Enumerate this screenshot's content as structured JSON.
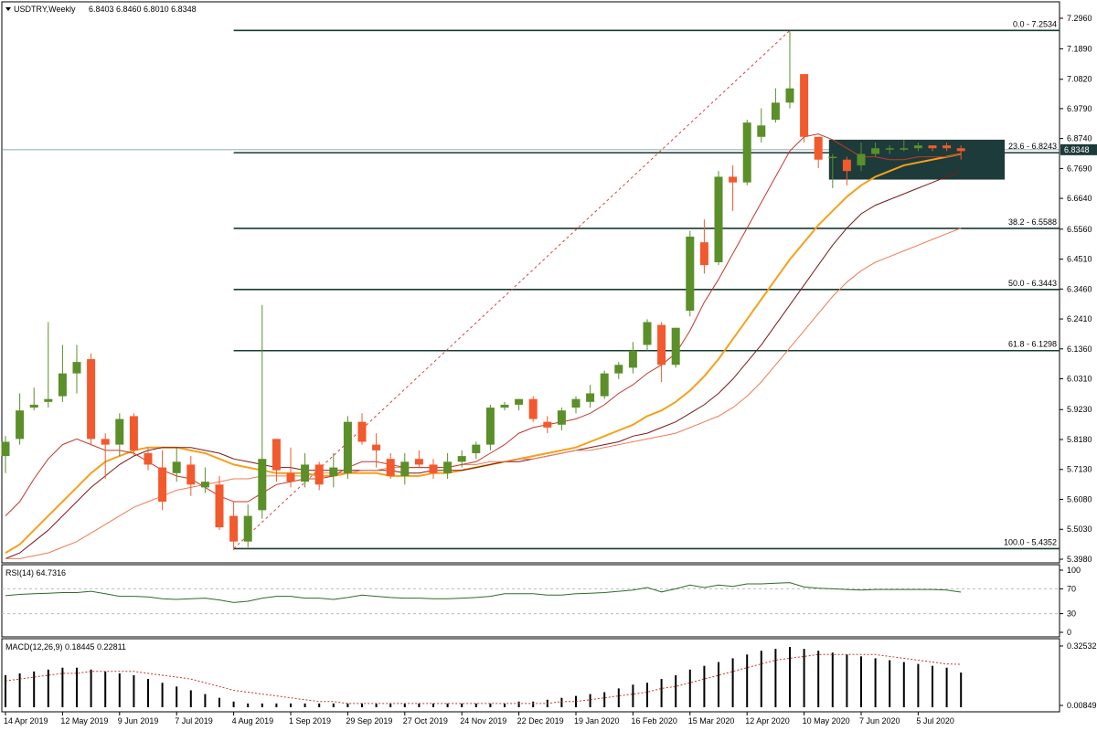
{
  "chart_data": [
    {
      "type": "candlestick",
      "header": {
        "symbol_timeframe": "USDTRY,Weekly",
        "ohlc": "6.8403 6.8460 6.8010 6.8348"
      },
      "current_price_label": "6.8348",
      "ylim": [
        5.398,
        7.2534
      ],
      "y_ticks": [
        "7.2960",
        "7.1890",
        "7.0820",
        "6.9790",
        "6.8740",
        "6.7690",
        "6.6640",
        "6.5560",
        "6.4510",
        "6.3460",
        "6.2410",
        "6.1360",
        "6.0310",
        "5.9230",
        "5.8180",
        "5.7130",
        "5.6080",
        "5.5030",
        "5.3980"
      ],
      "x_labels": [
        "14 Apr 2019",
        "12 May 2019",
        "9 Jun 2019",
        "7 Jul 2019",
        "4 Aug 2019",
        "1 Sep 2019",
        "29 Sep 2019",
        "27 Oct 2019",
        "24 Nov 2019",
        "22 Dec 2019",
        "19 Jan 2020",
        "16 Feb 2020",
        "15 Mar 2020",
        "12 Apr 2020",
        "10 May 2020",
        "7 Jun 2020",
        "5 Jul 2020"
      ],
      "candles": [
        {
          "o": 5.76,
          "h": 5.83,
          "l": 5.7,
          "c": 5.81
        },
        {
          "o": 5.82,
          "h": 5.98,
          "l": 5.8,
          "c": 5.92
        },
        {
          "o": 5.93,
          "h": 6.0,
          "l": 5.92,
          "c": 5.94
        },
        {
          "o": 5.95,
          "h": 6.23,
          "l": 5.93,
          "c": 5.96
        },
        {
          "o": 5.97,
          "h": 6.15,
          "l": 5.95,
          "c": 6.05
        },
        {
          "o": 6.05,
          "h": 6.15,
          "l": 5.98,
          "c": 6.09
        },
        {
          "o": 6.1,
          "h": 6.12,
          "l": 5.8,
          "c": 5.82
        },
        {
          "o": 5.82,
          "h": 5.84,
          "l": 5.68,
          "c": 5.8
        },
        {
          "o": 5.8,
          "h": 5.91,
          "l": 5.76,
          "c": 5.89
        },
        {
          "o": 5.9,
          "h": 5.91,
          "l": 5.76,
          "c": 5.78
        },
        {
          "o": 5.77,
          "h": 5.79,
          "l": 5.71,
          "c": 5.73
        },
        {
          "o": 5.72,
          "h": 5.78,
          "l": 5.57,
          "c": 5.6
        },
        {
          "o": 5.7,
          "h": 5.79,
          "l": 5.67,
          "c": 5.74
        },
        {
          "o": 5.73,
          "h": 5.76,
          "l": 5.62,
          "c": 5.66
        },
        {
          "o": 5.65,
          "h": 5.72,
          "l": 5.63,
          "c": 5.67
        },
        {
          "o": 5.66,
          "h": 5.69,
          "l": 5.5,
          "c": 5.51
        },
        {
          "o": 5.55,
          "h": 5.6,
          "l": 5.43,
          "c": 5.46
        },
        {
          "o": 5.46,
          "h": 5.59,
          "l": 5.44,
          "c": 5.55
        },
        {
          "o": 5.57,
          "h": 6.29,
          "l": 5.54,
          "c": 5.75
        },
        {
          "o": 5.82,
          "h": 5.82,
          "l": 5.67,
          "c": 5.71
        },
        {
          "o": 5.7,
          "h": 5.79,
          "l": 5.65,
          "c": 5.67
        },
        {
          "o": 5.67,
          "h": 5.77,
          "l": 5.65,
          "c": 5.73
        },
        {
          "o": 5.73,
          "h": 5.74,
          "l": 5.64,
          "c": 5.66
        },
        {
          "o": 5.69,
          "h": 5.77,
          "l": 5.65,
          "c": 5.72
        },
        {
          "o": 5.7,
          "h": 5.9,
          "l": 5.68,
          "c": 5.88
        },
        {
          "o": 5.88,
          "h": 5.91,
          "l": 5.8,
          "c": 5.81
        },
        {
          "o": 5.8,
          "h": 5.84,
          "l": 5.72,
          "c": 5.78
        },
        {
          "o": 5.75,
          "h": 5.77,
          "l": 5.68,
          "c": 5.69
        },
        {
          "o": 5.69,
          "h": 5.77,
          "l": 5.66,
          "c": 5.74
        },
        {
          "o": 5.75,
          "h": 5.78,
          "l": 5.72,
          "c": 5.73
        },
        {
          "o": 5.73,
          "h": 5.75,
          "l": 5.68,
          "c": 5.7
        },
        {
          "o": 5.7,
          "h": 5.77,
          "l": 5.68,
          "c": 5.74
        },
        {
          "o": 5.74,
          "h": 5.78,
          "l": 5.72,
          "c": 5.76
        },
        {
          "o": 5.77,
          "h": 5.81,
          "l": 5.75,
          "c": 5.8
        },
        {
          "o": 5.8,
          "h": 5.94,
          "l": 5.78,
          "c": 5.93
        },
        {
          "o": 5.93,
          "h": 5.95,
          "l": 5.92,
          "c": 5.94
        },
        {
          "o": 5.94,
          "h": 5.96,
          "l": 5.92,
          "c": 5.96
        },
        {
          "o": 5.96,
          "h": 5.97,
          "l": 5.88,
          "c": 5.89
        },
        {
          "o": 5.88,
          "h": 5.9,
          "l": 5.84,
          "c": 5.86
        },
        {
          "o": 5.87,
          "h": 5.93,
          "l": 5.85,
          "c": 5.92
        },
        {
          "o": 5.93,
          "h": 5.97,
          "l": 5.91,
          "c": 5.96
        },
        {
          "o": 5.95,
          "h": 6.01,
          "l": 5.93,
          "c": 5.98
        },
        {
          "o": 5.97,
          "h": 6.06,
          "l": 5.96,
          "c": 6.05
        },
        {
          "o": 6.05,
          "h": 6.09,
          "l": 6.03,
          "c": 6.08
        },
        {
          "o": 6.07,
          "h": 6.16,
          "l": 6.05,
          "c": 6.13
        },
        {
          "o": 6.15,
          "h": 6.24,
          "l": 6.13,
          "c": 6.23
        },
        {
          "o": 6.22,
          "h": 6.23,
          "l": 6.02,
          "c": 6.08
        },
        {
          "o": 6.08,
          "h": 6.21,
          "l": 6.07,
          "c": 6.21
        },
        {
          "o": 6.27,
          "h": 6.55,
          "l": 6.25,
          "c": 6.53
        },
        {
          "o": 6.51,
          "h": 6.59,
          "l": 6.4,
          "c": 6.43
        },
        {
          "o": 6.44,
          "h": 6.76,
          "l": 6.43,
          "c": 6.74
        },
        {
          "o": 6.74,
          "h": 6.78,
          "l": 6.62,
          "c": 6.72
        },
        {
          "o": 6.72,
          "h": 6.94,
          "l": 6.71,
          "c": 6.93
        },
        {
          "o": 6.88,
          "h": 6.98,
          "l": 6.86,
          "c": 6.92
        },
        {
          "o": 6.94,
          "h": 7.05,
          "l": 6.93,
          "c": 7.0
        },
        {
          "o": 7.0,
          "h": 7.25,
          "l": 6.98,
          "c": 7.05
        },
        {
          "o": 7.1,
          "h": 7.1,
          "l": 6.86,
          "c": 6.88
        },
        {
          "o": 6.88,
          "h": 6.88,
          "l": 6.77,
          "c": 6.8
        },
        {
          "o": 6.81,
          "h": 6.82,
          "l": 6.7,
          "c": 6.81
        },
        {
          "o": 6.8,
          "h": 6.81,
          "l": 6.71,
          "c": 6.76
        },
        {
          "o": 6.78,
          "h": 6.86,
          "l": 6.76,
          "c": 6.82
        },
        {
          "o": 6.82,
          "h": 6.86,
          "l": 6.81,
          "c": 6.84
        },
        {
          "o": 6.84,
          "h": 6.85,
          "l": 6.82,
          "c": 6.84
        },
        {
          "o": 6.84,
          "h": 6.87,
          "l": 6.83,
          "c": 6.84
        },
        {
          "o": 6.84,
          "h": 6.86,
          "l": 6.83,
          "c": 6.85
        },
        {
          "o": 6.85,
          "h": 6.85,
          "l": 6.83,
          "c": 6.84
        },
        {
          "o": 6.85,
          "h": 6.86,
          "l": 6.83,
          "c": 6.84
        },
        {
          "o": 6.84,
          "h": 6.85,
          "l": 6.8,
          "c": 6.83
        }
      ],
      "fibonacci": [
        {
          "label": "0.0 - 7.2534",
          "value": 7.2534
        },
        {
          "label": "23.6 - 6.8243",
          "value": 6.8243
        },
        {
          "label": "38.2 - 6.5588",
          "value": 6.5588
        },
        {
          "label": "50.0 - 6.3443",
          "value": 6.3443
        },
        {
          "label": "61.8 - 6.1298",
          "value": 6.1298
        },
        {
          "label": "100.0 - 5.4352",
          "value": 5.4352
        }
      ],
      "fib_trend": {
        "from": {
          "bar": 16,
          "value": 5.4352
        },
        "to": {
          "bar": 55,
          "value": 7.2534
        }
      },
      "zone": {
        "from_bar": 58,
        "to_bar": 67,
        "high": 6.87,
        "low": 6.73
      },
      "moving_averages": [
        {
          "color": "#f5a11c",
          "values": [
            5.42,
            5.45,
            5.5,
            5.55,
            5.6,
            5.65,
            5.7,
            5.74,
            5.76,
            5.78,
            5.79,
            5.79,
            5.79,
            5.78,
            5.77,
            5.75,
            5.73,
            5.72,
            5.71,
            5.7,
            5.7,
            5.7,
            5.69,
            5.69,
            5.7,
            5.7,
            5.7,
            5.69,
            5.69,
            5.69,
            5.7,
            5.7,
            5.71,
            5.72,
            5.73,
            5.74,
            5.75,
            5.76,
            5.77,
            5.78,
            5.79,
            5.81,
            5.83,
            5.85,
            5.87,
            5.9,
            5.92,
            5.95,
            5.99,
            6.04,
            6.1,
            6.17,
            6.24,
            6.31,
            6.38,
            6.45,
            6.51,
            6.57,
            6.62,
            6.67,
            6.71,
            6.74,
            6.76,
            6.78,
            6.79,
            6.8,
            6.81,
            6.82
          ]
        },
        {
          "color": "#7a1a1a",
          "values": [
            5.4,
            5.42,
            5.46,
            5.5,
            5.55,
            5.6,
            5.65,
            5.69,
            5.73,
            5.76,
            5.78,
            5.79,
            5.79,
            5.79,
            5.78,
            5.77,
            5.75,
            5.74,
            5.73,
            5.72,
            5.72,
            5.71,
            5.71,
            5.71,
            5.71,
            5.71,
            5.71,
            5.71,
            5.7,
            5.7,
            5.71,
            5.71,
            5.71,
            5.72,
            5.73,
            5.74,
            5.74,
            5.75,
            5.76,
            5.77,
            5.78,
            5.79,
            5.8,
            5.81,
            5.83,
            5.84,
            5.86,
            5.88,
            5.91,
            5.94,
            5.98,
            6.03,
            6.09,
            6.15,
            6.22,
            6.29,
            6.36,
            6.43,
            6.5,
            6.56,
            6.61,
            6.64,
            6.66,
            6.68,
            6.7,
            6.72,
            6.74,
            6.76
          ]
        },
        {
          "color": "#f07c55",
          "values": [
            5.4,
            5.4,
            5.41,
            5.42,
            5.44,
            5.46,
            5.49,
            5.52,
            5.55,
            5.58,
            5.6,
            5.62,
            5.64,
            5.65,
            5.66,
            5.67,
            5.68,
            5.68,
            5.69,
            5.69,
            5.69,
            5.69,
            5.7,
            5.7,
            5.7,
            5.71,
            5.71,
            5.72,
            5.72,
            5.72,
            5.72,
            5.72,
            5.73,
            5.73,
            5.74,
            5.74,
            5.75,
            5.75,
            5.76,
            5.77,
            5.78,
            5.78,
            5.79,
            5.8,
            5.81,
            5.82,
            5.83,
            5.84,
            5.86,
            5.88,
            5.9,
            5.93,
            5.97,
            6.02,
            6.08,
            6.14,
            6.2,
            6.26,
            6.32,
            6.37,
            6.41,
            6.44,
            6.46,
            6.48,
            6.5,
            6.52,
            6.54,
            6.56
          ]
        },
        {
          "color": "#c0392b",
          "values": [
            5.55,
            5.6,
            5.68,
            5.75,
            5.8,
            5.82,
            5.8,
            5.78,
            5.78,
            5.77,
            5.74,
            5.71,
            5.69,
            5.68,
            5.65,
            5.62,
            5.6,
            5.6,
            5.63,
            5.66,
            5.67,
            5.68,
            5.68,
            5.69,
            5.72,
            5.74,
            5.74,
            5.73,
            5.72,
            5.72,
            5.72,
            5.72,
            5.73,
            5.74,
            5.77,
            5.8,
            5.84,
            5.86,
            5.87,
            5.88,
            5.89,
            5.91,
            5.94,
            5.98,
            6.01,
            6.05,
            6.08,
            6.12,
            6.2,
            6.3,
            6.38,
            6.47,
            6.56,
            6.65,
            6.74,
            6.83,
            6.88,
            6.89,
            6.87,
            6.84,
            6.81,
            6.81,
            6.8,
            6.8,
            6.81,
            6.81,
            6.81,
            6.82
          ]
        }
      ]
    },
    {
      "type": "line",
      "title": "RSI(14) 64.7316",
      "ylim": [
        0,
        100
      ],
      "y_ticks": [
        "100",
        "70",
        "30",
        "0"
      ],
      "levels": [
        70,
        30
      ],
      "values": [
        59,
        61,
        62,
        63,
        64,
        64,
        66,
        62,
        58,
        58,
        57,
        54,
        53,
        54,
        55,
        52,
        48,
        50,
        55,
        58,
        58,
        55,
        55,
        53,
        56,
        60,
        58,
        56,
        55,
        55,
        54,
        54,
        55,
        56,
        58,
        62,
        62,
        62,
        60,
        60,
        62,
        63,
        64,
        66,
        68,
        72,
        65,
        70,
        76,
        72,
        76,
        74,
        78,
        78,
        79,
        80,
        73,
        71,
        70,
        69,
        68,
        69,
        69,
        69,
        69,
        69,
        68,
        64.7316
      ]
    },
    {
      "type": "bar",
      "title": "MACD(12,26,9) 0.18445 0.22811",
      "ylim": [
        0.00849,
        0.32532
      ],
      "y_ticks": [
        "0.32532",
        "0.00849"
      ],
      "histogram": [
        0.17,
        0.18,
        0.19,
        0.2,
        0.21,
        0.21,
        0.2,
        0.19,
        0.18,
        0.17,
        0.15,
        0.13,
        0.11,
        0.09,
        0.07,
        0.05,
        0.03,
        0.02,
        0.02,
        0.02,
        0.02,
        0.02,
        0.02,
        0.02,
        0.02,
        0.02,
        0.02,
        0.02,
        0.02,
        0.02,
        0.02,
        0.02,
        0.02,
        0.02,
        0.02,
        0.02,
        0.03,
        0.03,
        0.04,
        0.05,
        0.06,
        0.07,
        0.08,
        0.1,
        0.12,
        0.13,
        0.15,
        0.17,
        0.2,
        0.22,
        0.24,
        0.26,
        0.28,
        0.3,
        0.31,
        0.32,
        0.31,
        0.3,
        0.29,
        0.28,
        0.27,
        0.26,
        0.25,
        0.24,
        0.23,
        0.22,
        0.21,
        0.18445
      ],
      "signal": [
        0.14,
        0.15,
        0.16,
        0.17,
        0.18,
        0.18,
        0.19,
        0.19,
        0.19,
        0.19,
        0.18,
        0.17,
        0.16,
        0.15,
        0.13,
        0.11,
        0.09,
        0.08,
        0.07,
        0.06,
        0.05,
        0.04,
        0.03,
        0.03,
        0.02,
        0.02,
        0.02,
        0.02,
        0.02,
        0.02,
        0.02,
        0.02,
        0.02,
        0.02,
        0.02,
        0.02,
        0.02,
        0.02,
        0.02,
        0.03,
        0.03,
        0.04,
        0.05,
        0.06,
        0.07,
        0.08,
        0.1,
        0.11,
        0.13,
        0.15,
        0.17,
        0.19,
        0.21,
        0.23,
        0.25,
        0.26,
        0.27,
        0.28,
        0.28,
        0.28,
        0.28,
        0.28,
        0.27,
        0.26,
        0.25,
        0.24,
        0.23,
        0.22811
      ]
    }
  ],
  "colors": {
    "bull": "#5b8f29",
    "bear": "#f2592c",
    "fib_line": "#1a3a2e",
    "zone": "#1d3b3a",
    "ma_orange": "#f5a11c",
    "ma_dark": "#7a1a1a",
    "ma_salmon": "#f07c55",
    "ma_red": "#c0392b",
    "trend": "#e04040"
  }
}
